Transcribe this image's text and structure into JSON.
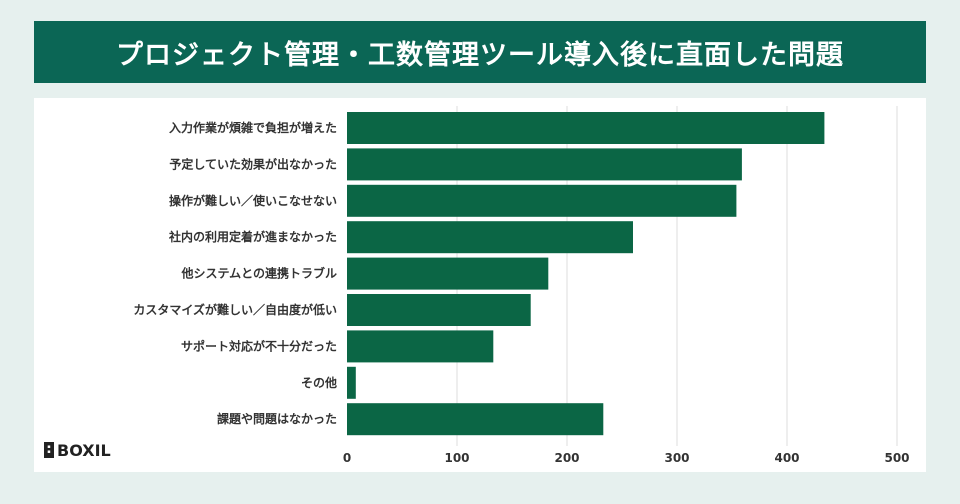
{
  "title": "プロジェクト管理・工数管理ツール導入後に直面した問題",
  "logo": {
    "text": "BOXIL",
    "icon": "boxil-saas-mark-icon"
  },
  "colors": {
    "banner": "#0b6655",
    "bar": "#0b6645",
    "background": "#e6f0ee",
    "panel": "#ffffff",
    "grid": "#dddddd"
  },
  "chart_data": {
    "type": "bar",
    "orientation": "horizontal",
    "categories": [
      "入力作業が煩雑で負担が増えた",
      "予定していた効果が出なかった",
      "操作が難しい／使いこなせない",
      "社内の利用定着が進まなかった",
      "他システムとの連携トラブル",
      "カスタマイズが難しい／自由度が低い",
      "サポート対応が不十分だった",
      "その他",
      "課題や問題はなかった"
    ],
    "values": [
      434,
      359,
      354,
      260,
      183,
      167,
      133,
      8,
      233
    ],
    "xlim": [
      0,
      500
    ],
    "xticks": [
      0,
      100,
      200,
      300,
      400,
      500
    ],
    "grid": true,
    "title": "",
    "xlabel": "",
    "ylabel": ""
  }
}
